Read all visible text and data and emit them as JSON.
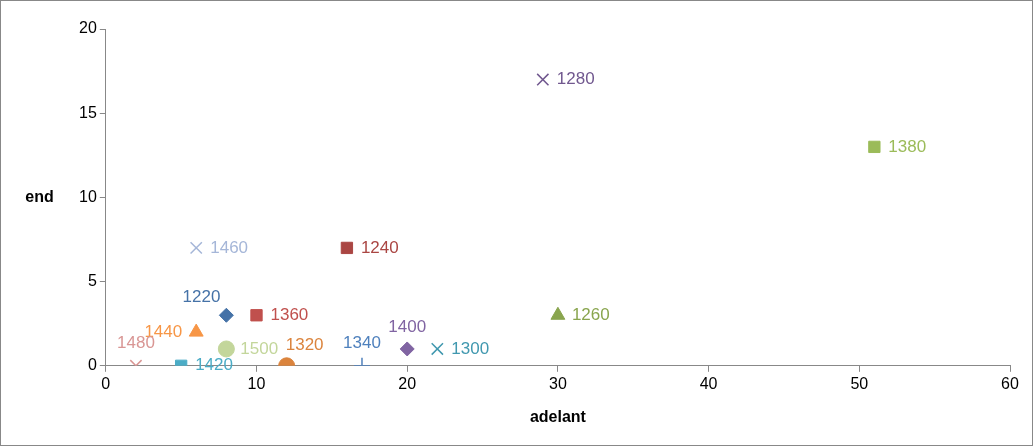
{
  "chart_data": {
    "type": "scatter",
    "xlabel": "adelant",
    "ylabel": "end",
    "xlim": [
      0,
      60
    ],
    "xticks": [
      0,
      10,
      20,
      30,
      40,
      50,
      60
    ],
    "ylim": [
      0,
      20
    ],
    "yticks": [
      0,
      5,
      10,
      15,
      20
    ],
    "grid": false,
    "series": [
      {
        "name": "1220",
        "color": "#4572a7",
        "marker": "diamond",
        "x": [
          8
        ],
        "values": [
          3
        ]
      },
      {
        "name": "1240",
        "color": "#aa4643",
        "marker": "square",
        "x": [
          16
        ],
        "values": [
          7
        ]
      },
      {
        "name": "1260",
        "color": "#89a54e",
        "marker": "triangle",
        "x": [
          30
        ],
        "values": [
          3
        ]
      },
      {
        "name": "1280",
        "color": "#71588f",
        "marker": "cross",
        "x": [
          29
        ],
        "values": [
          17
        ]
      },
      {
        "name": "1300",
        "color": "#4198af",
        "marker": "cross",
        "x": [
          22
        ],
        "values": [
          1
        ]
      },
      {
        "name": "1320",
        "color": "#db843d",
        "marker": "circle",
        "x": [
          12
        ],
        "values": [
          0
        ]
      },
      {
        "name": "1340",
        "color": "#4f81bd",
        "marker": "plus",
        "x": [
          17
        ],
        "values": [
          0
        ]
      },
      {
        "name": "1360",
        "color": "#c0504d",
        "marker": "square",
        "x": [
          10
        ],
        "values": [
          3
        ]
      },
      {
        "name": "1380",
        "color": "#9bbb59",
        "marker": "square",
        "x": [
          51
        ],
        "values": [
          13
        ]
      },
      {
        "name": "1400",
        "color": "#8064a2",
        "marker": "diamond",
        "x": [
          20
        ],
        "values": [
          1
        ]
      },
      {
        "name": "1420",
        "color": "#4bacc6",
        "marker": "square",
        "x": [
          5
        ],
        "values": [
          0
        ]
      },
      {
        "name": "1440",
        "color": "#f79646",
        "marker": "triangle",
        "x": [
          6
        ],
        "values": [
          2
        ]
      },
      {
        "name": "1460",
        "color": "#a5b6d8",
        "marker": "cross",
        "x": [
          6
        ],
        "values": [
          7
        ]
      },
      {
        "name": "1480",
        "color": "#d99694",
        "marker": "cross",
        "x": [
          2
        ],
        "values": [
          0
        ]
      },
      {
        "name": "1500",
        "color": "#c3d69b",
        "marker": "circle",
        "x": [
          8
        ],
        "values": [
          1
        ]
      }
    ]
  }
}
